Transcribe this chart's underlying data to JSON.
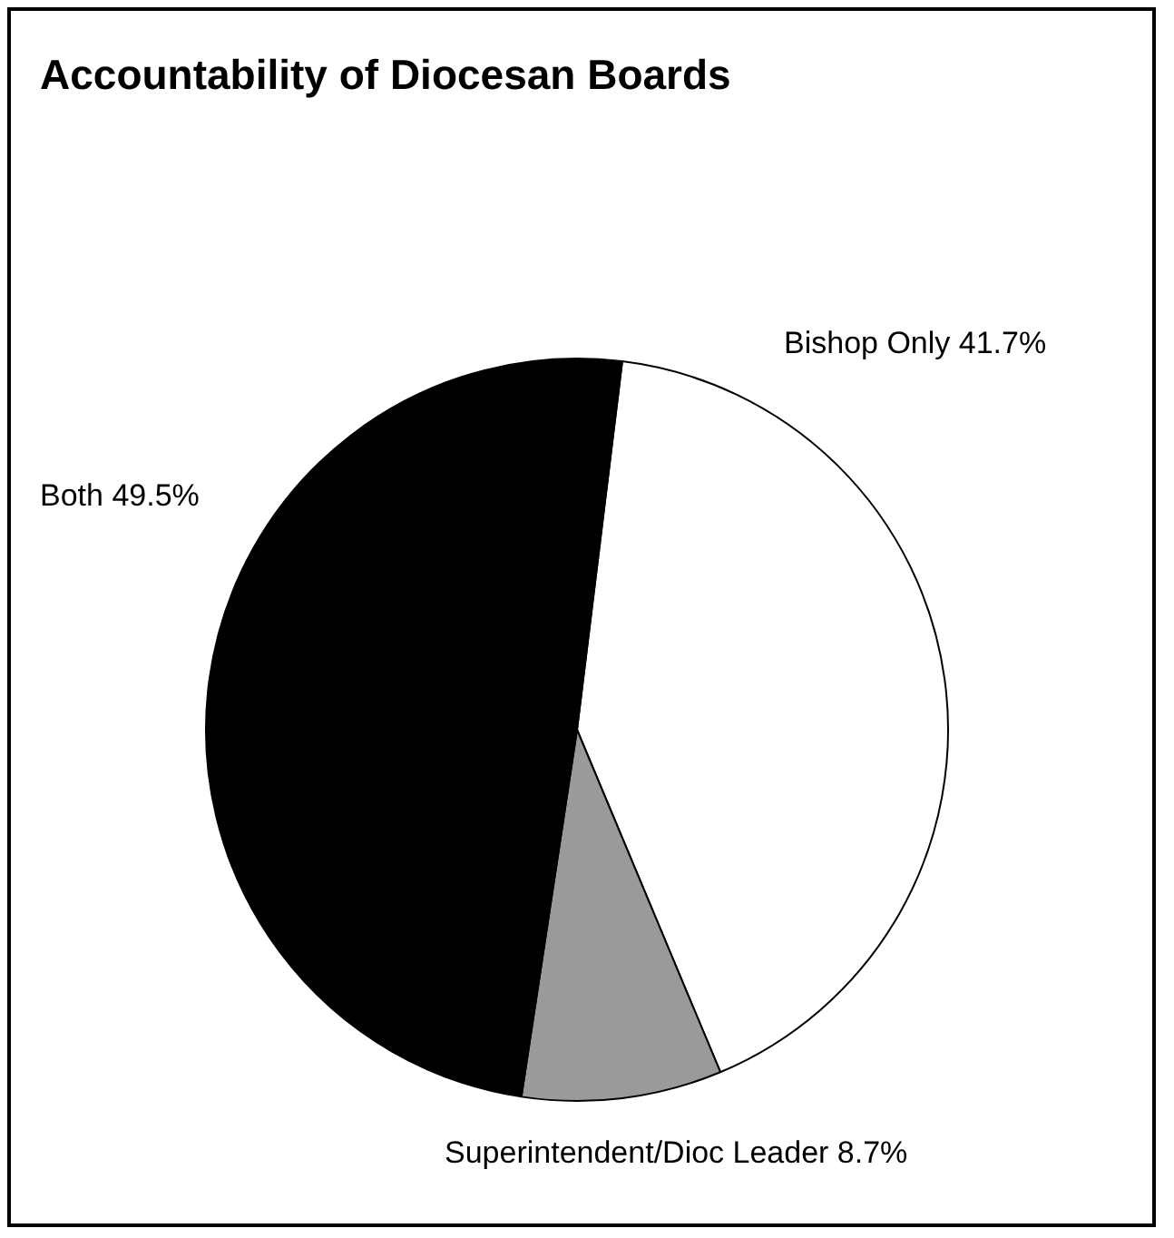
{
  "chart_data": {
    "type": "pie",
    "title": "Accountability of Diocesan Boards",
    "categories": [
      "Bishop Only",
      "Superintendent/Dioc Leader",
      "Both"
    ],
    "values": [
      41.7,
      8.7,
      49.5
    ],
    "value_labels": [
      "41.7%",
      "8.7%",
      "49.5%"
    ],
    "colors": [
      "#ffffff",
      "#9a9a9a",
      "#000000"
    ],
    "legend": false
  }
}
